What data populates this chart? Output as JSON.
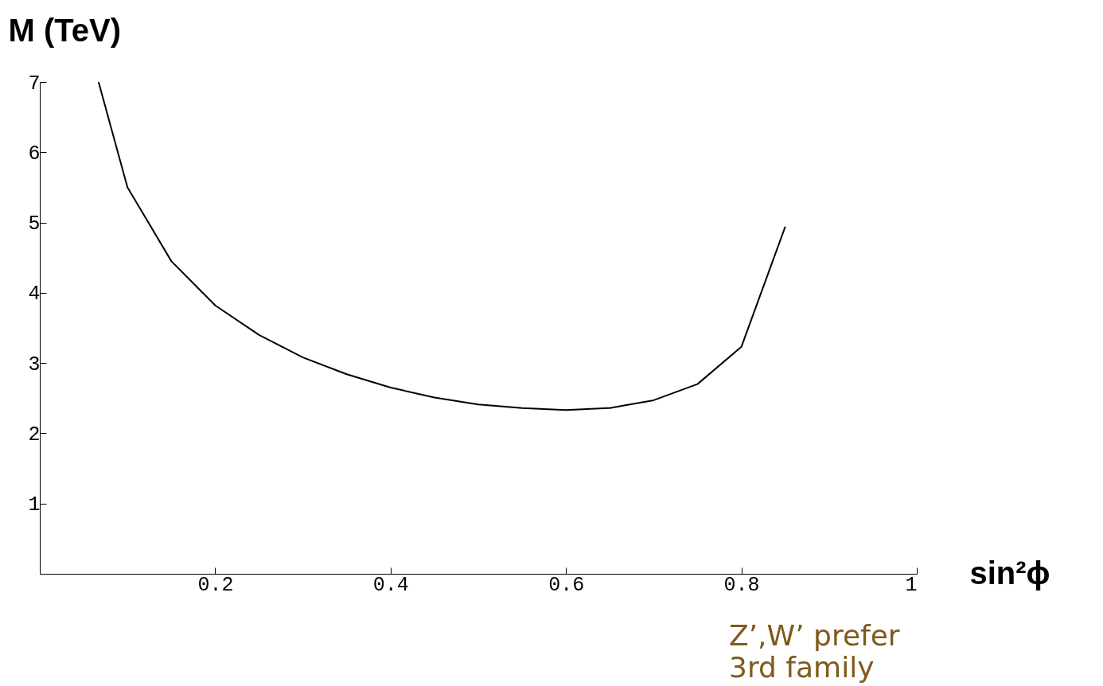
{
  "chart_data": {
    "type": "line",
    "xlabel": "sin²ϕ",
    "ylabel": "M (TeV)",
    "annotations": [
      "Z’,W’ prefer\n3rd family"
    ],
    "x": [
      0.067,
      0.1,
      0.15,
      0.2,
      0.25,
      0.3,
      0.35,
      0.4,
      0.45,
      0.5,
      0.55,
      0.6,
      0.65,
      0.7,
      0.75,
      0.8,
      0.85
    ],
    "series": [
      {
        "color": "#000000",
        "values": [
          7,
          5.5,
          4.45,
          3.82,
          3.4,
          3.08,
          2.84,
          2.65,
          2.51,
          2.41,
          2.36,
          2.33,
          2.36,
          2.47,
          2.7,
          3.23,
          4.94
        ]
      }
    ],
    "xlim": [
      0,
      1
    ],
    "ylim": [
      0,
      7
    ],
    "xticks": [
      0.2,
      0.4,
      0.6,
      0.8,
      1
    ],
    "yticks": [
      1,
      2,
      3,
      4,
      5,
      6,
      7
    ],
    "grid": false
  }
}
